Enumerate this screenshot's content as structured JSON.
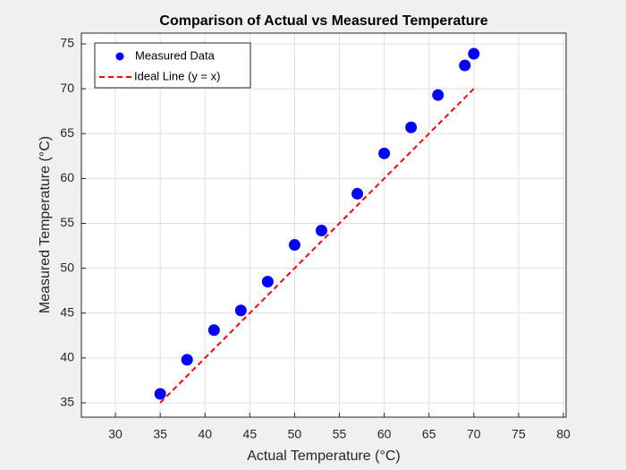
{
  "chart_data": {
    "type": "scatter",
    "title": "Comparison of Actual vs Measured Temperature",
    "x_label": "Actual Temperature (°C)",
    "y_label": "Measured Temperature (°C)",
    "xlim": [
      26.2,
      80.3
    ],
    "ylim": [
      33.4,
      76.2
    ],
    "xticks": [
      30,
      35,
      40,
      45,
      50,
      55,
      60,
      65,
      70,
      75,
      80
    ],
    "yticks": [
      35,
      40,
      45,
      50,
      55,
      60,
      65,
      70,
      75
    ],
    "grid": true,
    "legend": "upper left",
    "series": [
      {
        "name": "Measured Data",
        "color": "#0000ff",
        "style": "marker",
        "x": [
          35,
          38,
          41,
          44,
          47,
          50,
          53,
          57,
          60,
          63,
          66,
          69,
          70
        ],
        "values": [
          36.0,
          39.8,
          43.1,
          45.3,
          48.5,
          52.6,
          54.2,
          58.3,
          62.8,
          65.7,
          69.3,
          72.6,
          73.9
        ]
      },
      {
        "name": "Ideal Line (y = x)",
        "color": "#ff0000",
        "style": "dashed",
        "x": [
          35,
          70
        ],
        "values": [
          35,
          70
        ]
      }
    ]
  }
}
